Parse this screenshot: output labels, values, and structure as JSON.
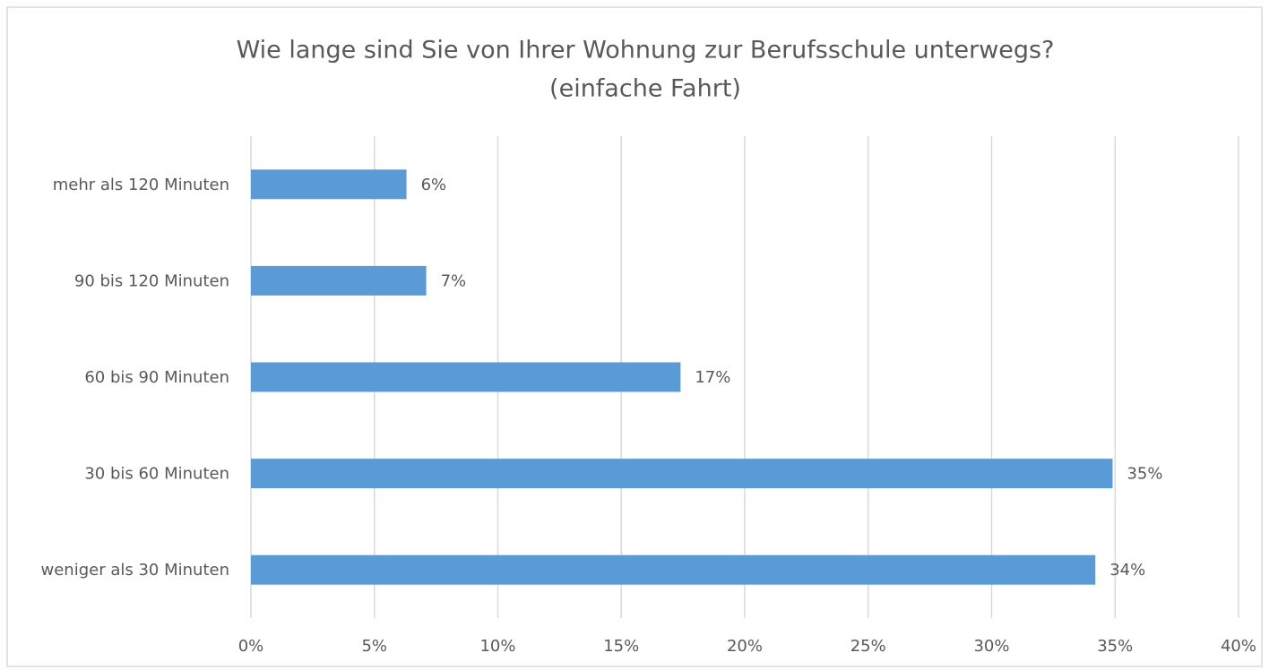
{
  "chart_data": {
    "type": "bar",
    "orientation": "horizontal",
    "title": "Wie lange sind Sie von Ihrer Wohnung zur Berufsschule unterwegs?",
    "subtitle": "(einfache Fahrt)",
    "categories": [
      "mehr als 120 Minuten",
      "90 bis 120 Minuten",
      "60 bis 90 Minuten",
      "30 bis 60 Minuten",
      "weniger als 30 Minuten"
    ],
    "values": [
      6.3,
      7.1,
      17.4,
      34.9,
      34.2
    ],
    "value_labels": [
      "6%",
      "7%",
      "17%",
      "35%",
      "34%"
    ],
    "color": "#5b9bd5",
    "xlim": [
      0,
      40
    ],
    "xticks": [
      {
        "value": 0,
        "label": "0%"
      },
      {
        "value": 5,
        "label": "5%"
      },
      {
        "value": 10,
        "label": "10%"
      },
      {
        "value": 15,
        "label": "15%"
      },
      {
        "value": 20,
        "label": "20%"
      },
      {
        "value": 25,
        "label": "25%"
      },
      {
        "value": 30,
        "label": "30%"
      },
      {
        "value": 35,
        "label": "35%"
      },
      {
        "value": 40,
        "label": "40%"
      }
    ],
    "grid": true
  }
}
